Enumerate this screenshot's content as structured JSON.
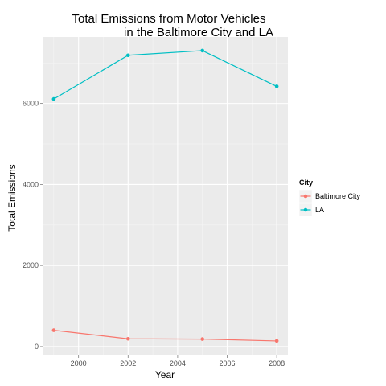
{
  "chart_data": {
    "type": "line",
    "title_lines": [
      "Total Emissions from Motor Vehicles",
      "in the Baltimore City and LA"
    ],
    "xlabel": "Year",
    "ylabel": "Total Emissions",
    "x": [
      1999,
      2002,
      2005,
      2008
    ],
    "series": [
      {
        "name": "Baltimore City",
        "values": [
          403,
          192,
          185,
          139
        ],
        "color": "#F8766D"
      },
      {
        "name": "LA",
        "values": [
          6110,
          7188,
          7304,
          6421
        ],
        "color": "#00BFC4"
      }
    ],
    "xlim": [
      1998.55,
      2008.45
    ],
    "ylim": [
      -220,
      7640
    ],
    "x_ticks": [
      2000,
      2002,
      2004,
      2006,
      2008
    ],
    "y_ticks": [
      0,
      2000,
      4000,
      6000
    ],
    "grid": true,
    "legend": {
      "title": "City",
      "placement": "right"
    },
    "colors": {
      "panel": "#EBEBEB",
      "grid_major": "#FFFFFF",
      "grid_minor": "#F5F5F5"
    }
  }
}
